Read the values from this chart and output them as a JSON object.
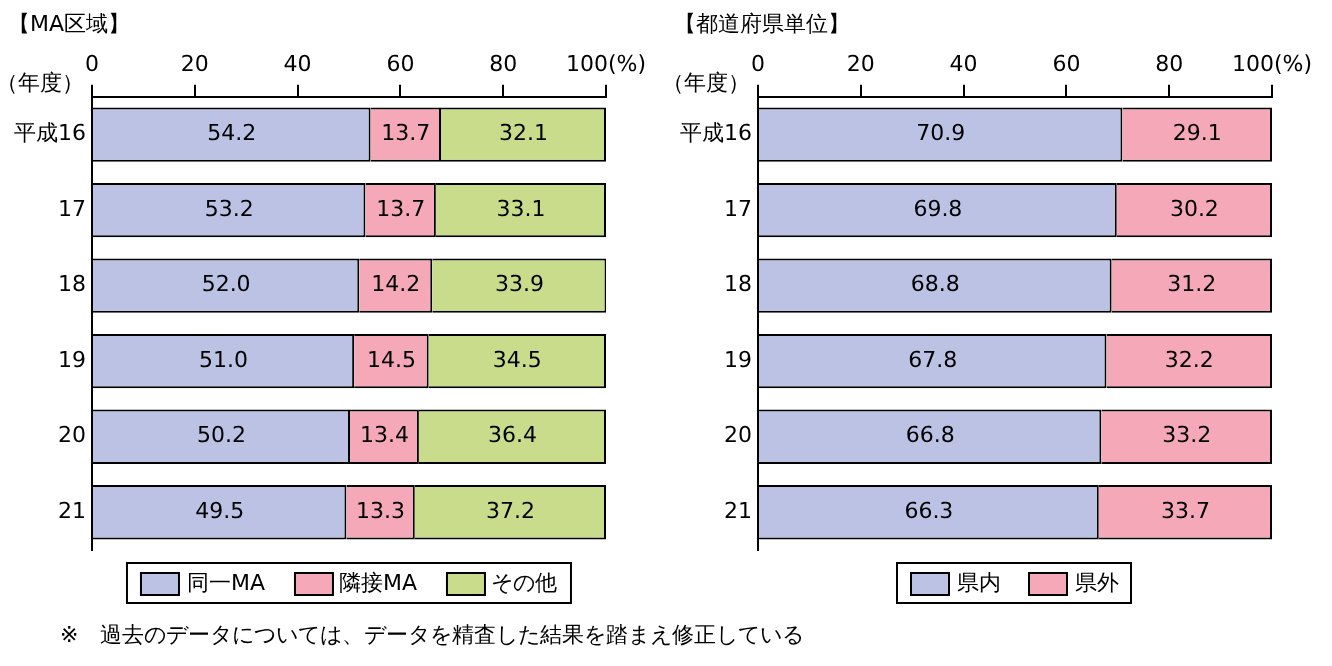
{
  "chart_data": [
    {
      "type": "bar",
      "orientation": "horizontal",
      "stacked": true,
      "title": "【MA区域】",
      "ylabel": "（年度）",
      "categories": [
        "平成16",
        "17",
        "18",
        "19",
        "20",
        "21"
      ],
      "series": [
        {
          "name": "同一MA",
          "color": "#bcc2e4",
          "values": [
            54.2,
            53.2,
            52.0,
            51.0,
            50.2,
            49.5
          ]
        },
        {
          "name": "隣接MA",
          "color": "#f4a8b8",
          "values": [
            13.7,
            13.7,
            14.2,
            14.5,
            13.4,
            13.3
          ]
        },
        {
          "name": "その他",
          "color": "#c8dc8c",
          "values": [
            32.1,
            33.1,
            33.9,
            34.5,
            36.4,
            37.2
          ]
        }
      ],
      "value_labels": [
        [
          "54.2",
          "53.2",
          "52.0",
          "51.0",
          "50.2",
          "49.5"
        ],
        [
          "13.7",
          "13.7",
          "14.2",
          "14.5",
          "13.4",
          "13.3"
        ],
        [
          "32.1",
          "33.1",
          "33.9",
          "34.5",
          "36.4",
          "37.2"
        ]
      ],
      "xlim": [
        0,
        100
      ],
      "xticks": [
        0,
        20,
        40,
        60,
        80,
        {
          "value": 100,
          "label": "100(%)"
        }
      ],
      "grid": false,
      "legend": "bottom",
      "annotations": [
        "※　過去のデータについては、データを精査した結果を踏まえ修正している"
      ]
    },
    {
      "type": "bar",
      "orientation": "horizontal",
      "stacked": true,
      "title": "【都道府県単位】",
      "ylabel": "（年度）",
      "categories": [
        "平成16",
        "17",
        "18",
        "19",
        "20",
        "21"
      ],
      "series": [
        {
          "name": "県内",
          "color": "#bcc2e4",
          "values": [
            70.9,
            69.8,
            68.8,
            67.8,
            66.8,
            66.3
          ]
        },
        {
          "name": "県外",
          "color": "#f4a8b8",
          "values": [
            29.1,
            30.2,
            31.2,
            32.2,
            33.2,
            33.7
          ]
        }
      ],
      "value_labels": [
        [
          "70.9",
          "69.8",
          "68.8",
          "67.8",
          "66.8",
          "66.3"
        ],
        [
          "29.1",
          "30.2",
          "31.2",
          "32.2",
          "33.2",
          "33.7"
        ]
      ],
      "xlim": [
        0,
        100
      ],
      "xticks": [
        0,
        20,
        40,
        60,
        80,
        {
          "value": 100,
          "label": "100(%)"
        }
      ],
      "grid": false,
      "legend": "bottom"
    }
  ]
}
